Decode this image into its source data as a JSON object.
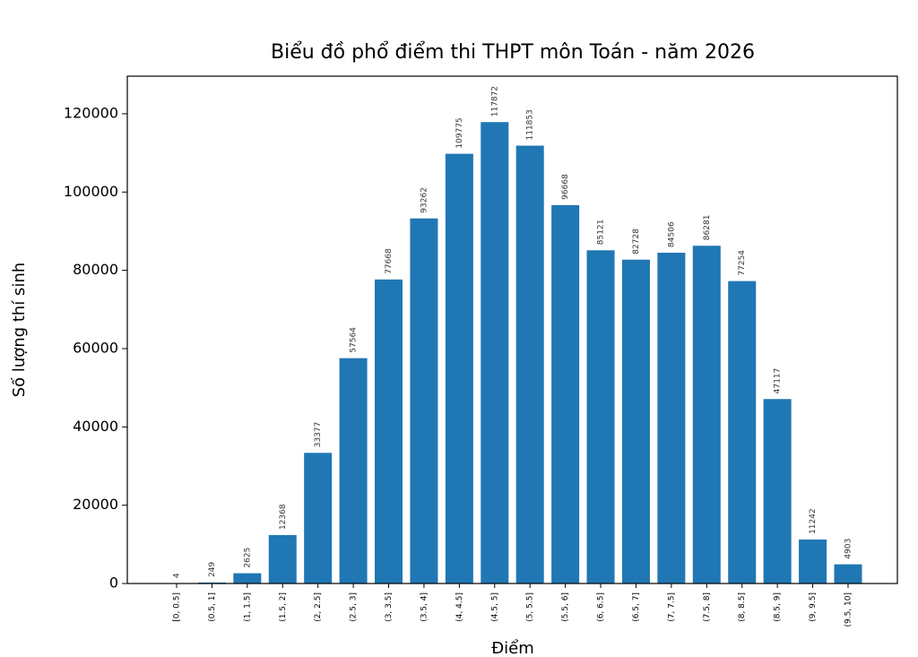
{
  "chart_data": {
    "type": "bar",
    "title": "Biểu đồ phổ điểm thi THPT môn Toán - năm 2026",
    "x_label": "Điểm",
    "y_label": "Số lượng thí sinh",
    "categories": [
      "[0, 0.5]",
      "(0.5, 1]",
      "(1, 1.5]",
      "(1.5, 2]",
      "(2, 2.5]",
      "(2.5, 3]",
      "(3, 3.5]",
      "(3.5, 4]",
      "(4, 4.5]",
      "(4.5, 5]",
      "(5, 5.5]",
      "(5.5, 6]",
      "(6, 6.5]",
      "(6.5, 7]",
      "(7, 7.5]",
      "(7.5, 8]",
      "(8, 8.5]",
      "(8.5, 9]",
      "(9, 9.5]",
      "(9.5, 10]"
    ],
    "values": [
      4,
      249,
      2625,
      12368,
      33377,
      57564,
      77668,
      93262,
      109775,
      117872,
      111853,
      96668,
      85121,
      82728,
      84506,
      86281,
      77254,
      47117,
      11242,
      4903
    ],
    "color": "#1f77b4",
    "ylim": [
      0,
      129600
    ],
    "yticks": [
      0,
      20000,
      40000,
      60000,
      80000,
      100000,
      120000
    ],
    "grid": false
  }
}
